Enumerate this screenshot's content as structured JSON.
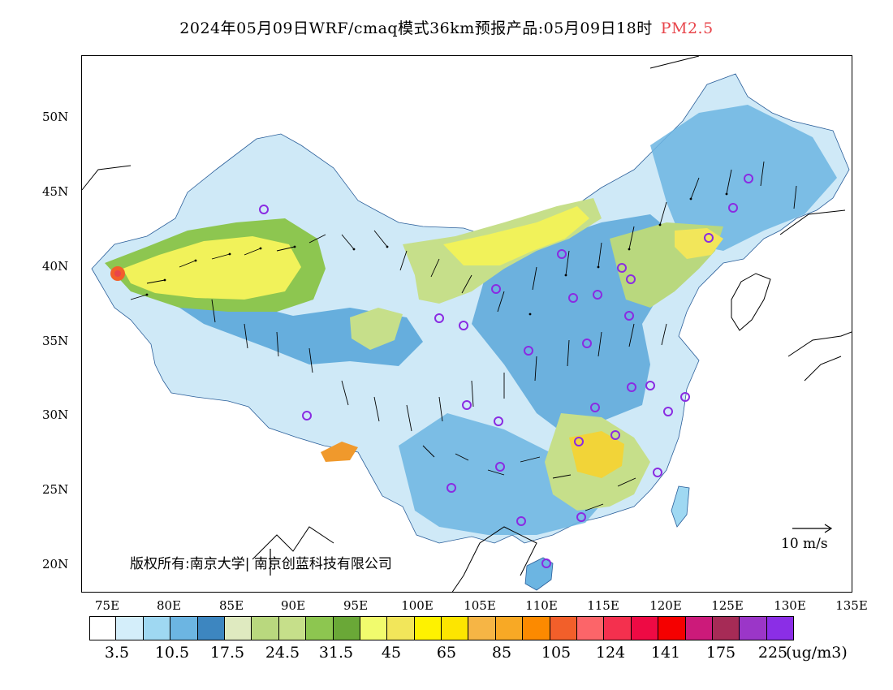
{
  "title": {
    "main": "2024年05月09日WRF/cmaq模式36km预报产品:05月09日18时",
    "species": "PM2.5"
  },
  "map": {
    "lat_labels": [
      "50N",
      "45N",
      "40N",
      "35N",
      "30N",
      "25N",
      "20N"
    ],
    "lon_labels": [
      "75E",
      "80E",
      "85E",
      "90E",
      "95E",
      "100E",
      "105E",
      "110E",
      "115E",
      "120E",
      "125E",
      "130E",
      "135E"
    ],
    "copyright": "版权所有:南京大学| 南京创蓝科技有限公司",
    "wind_reference": "10 m/s",
    "colors": {
      "blue_low": "#9fd8f2",
      "blue_mid": "#5aa7d9",
      "blue_dark": "#3d86c0",
      "green_light": "#c6df8a",
      "green": "#8dc650",
      "yellow": "#f1f25a",
      "yellow_deep": "#f2d438",
      "orange": "#f0992c",
      "red": "#e8454b",
      "station": "#8a2be2"
    }
  },
  "legend": {
    "colors": [
      "#ffffff",
      "#d4eefa",
      "#9fd8f2",
      "#6cb5e2",
      "#3d86c0",
      "#dfeac0",
      "#b9d87e",
      "#c6df8a",
      "#8dc650",
      "#6aa837",
      "#f1fb6d",
      "#f2e65a",
      "#fef200",
      "#fde500",
      "#f6b545",
      "#f8a925",
      "#fc8a00",
      "#f25f2a",
      "#fc6569",
      "#f4304e",
      "#ee0a44",
      "#f50000",
      "#cc1a7a",
      "#a62b56",
      "#9b36c8",
      "#8b2ee6"
    ],
    "labels": [
      "3.5",
      "10.5",
      "17.5",
      "24.5",
      "31.5",
      "45",
      "65",
      "85",
      "105",
      "124",
      "141",
      "175",
      "225"
    ],
    "unit": "(ug/m3)"
  }
}
